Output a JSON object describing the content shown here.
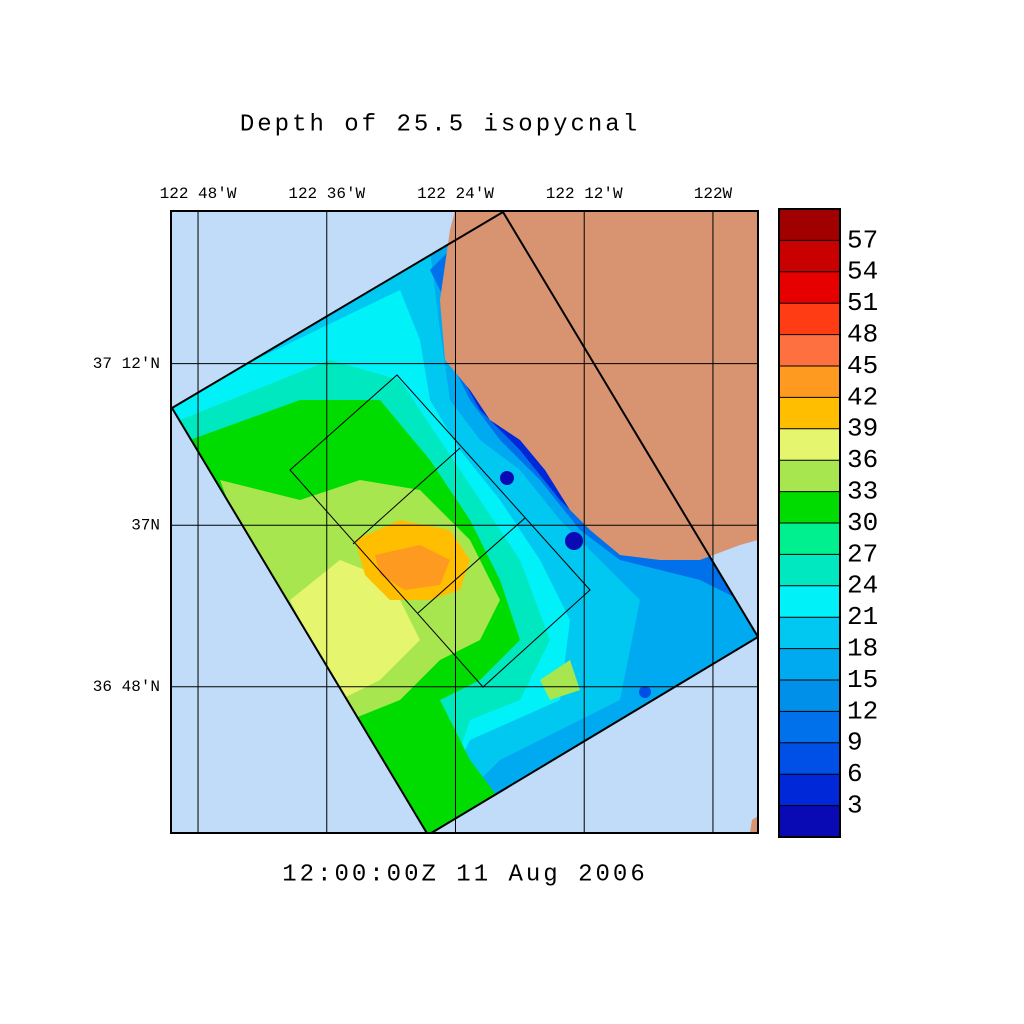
{
  "title": "Depth of 25.5 isopycnal",
  "time_label": "12:00:00Z  11 Aug 2006",
  "map": {
    "xlim": [
      -122.842,
      -121.93
    ],
    "ylim": [
      36.619,
      37.389
    ],
    "xticks": [
      {
        "value": -122.8,
        "label": "122 48'W"
      },
      {
        "value": -122.6,
        "label": "122 36'W"
      },
      {
        "value": -122.4,
        "label": "122 24'W"
      },
      {
        "value": -122.2,
        "label": "122 12'W"
      },
      {
        "value": -122,
        "label": "122W"
      }
    ],
    "yticks": [
      {
        "value": 37.2,
        "label": "37 12'N"
      },
      {
        "value": 37,
        "label": "37N"
      },
      {
        "value": 36.8,
        "label": "36 48'N"
      }
    ],
    "grid": true
  },
  "colorbar": {
    "clim": [
      0,
      60
    ],
    "ticks": [
      3,
      6,
      9,
      12,
      15,
      18,
      21,
      24,
      27,
      30,
      33,
      36,
      39,
      42,
      45,
      48,
      51,
      54,
      57
    ],
    "colors": [
      "#0a0ab4",
      "#0028d8",
      "#0050e8",
      "#0070eb",
      "#0090ea",
      "#00aaf0",
      "#00c8f0",
      "#00f2f8",
      "#00e8c0",
      "#00f090",
      "#00dc00",
      "#a8e650",
      "#e6f56e",
      "#ffbe00",
      "#ff9a20",
      "#ff7040",
      "#ff3c14",
      "#e60000",
      "#c80000",
      "#a00000"
    ]
  }
}
